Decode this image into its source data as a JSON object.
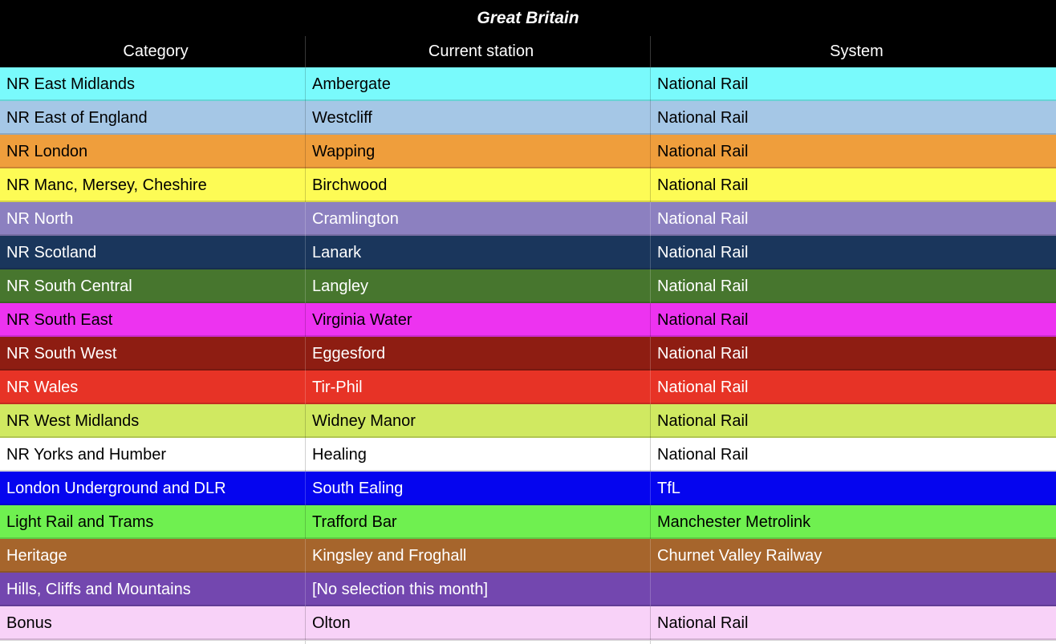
{
  "colors": {
    "header_bg": "#000000",
    "header_text": "#FFFFFF"
  },
  "chart_data": {
    "type": "table",
    "title": "Great Britain",
    "columns": [
      "Category",
      "Current station",
      "System"
    ],
    "rows": [
      {
        "category": "NR East Midlands",
        "station": "Ambergate",
        "system": "National Rail",
        "bg_color": "#79FAFC",
        "text_color": "#000000"
      },
      {
        "category": "NR East of England",
        "station": "Westcliff",
        "system": "National Rail",
        "bg_color": "#A5C7E6",
        "text_color": "#000000"
      },
      {
        "category": "NR London",
        "station": "Wapping",
        "system": "National Rail",
        "bg_color": "#EF9E3C",
        "text_color": "#000000"
      },
      {
        "category": "NR Manc, Mersey, Cheshire",
        "station": "Birchwood",
        "system": "National Rail",
        "bg_color": "#FDFB55",
        "text_color": "#000000"
      },
      {
        "category": "NR North",
        "station": "Cramlington",
        "system": "National Rail",
        "bg_color": "#8C80C0",
        "text_color": "#FFFFFF"
      },
      {
        "category": "NR Scotland",
        "station": "Lanark",
        "system": "National Rail",
        "bg_color": "#1A365C",
        "text_color": "#FFFFFF"
      },
      {
        "category": "NR South Central",
        "station": "Langley",
        "system": "National Rail",
        "bg_color": "#47762E",
        "text_color": "#FFFFFF"
      },
      {
        "category": "NR South East",
        "station": "Virginia Water",
        "system": "National Rail",
        "bg_color": "#ED33F0",
        "text_color": "#000000"
      },
      {
        "category": "NR South West",
        "station": "Eggesford",
        "system": "National Rail",
        "bg_color": "#8E1D12",
        "text_color": "#FFFFFF"
      },
      {
        "category": "NR Wales",
        "station": "Tir-Phil",
        "system": "National Rail",
        "bg_color": "#E73326",
        "text_color": "#FFFFFF"
      },
      {
        "category": "NR West Midlands",
        "station": "Widney Manor",
        "system": "National Rail",
        "bg_color": "#D0E961",
        "text_color": "#000000"
      },
      {
        "category": "NR Yorks and Humber",
        "station": "Healing",
        "system": "National Rail",
        "bg_color": "#FFFFFF",
        "text_color": "#000000"
      },
      {
        "category": "London Underground and DLR",
        "station": "South Ealing",
        "system": "TfL",
        "bg_color": "#0505EF",
        "text_color": "#FFFFFF"
      },
      {
        "category": "Light Rail and Trams",
        "station": "Trafford Bar",
        "system": "Manchester Metrolink",
        "bg_color": "#6FF050",
        "text_color": "#000000"
      },
      {
        "category": "Heritage",
        "station": "Kingsley and Froghall",
        "system": "Churnet Valley Railway",
        "bg_color": "#A6652C",
        "text_color": "#FFFFFF"
      },
      {
        "category": "Hills, Cliffs and Mountains",
        "station": "[No selection this month]",
        "system": "",
        "bg_color": "#7347AF",
        "text_color": "#FFFFFF"
      },
      {
        "category": "Bonus",
        "station": "Olton",
        "system": "National Rail",
        "bg_color": "#F8D2F8",
        "text_color": "#000000"
      }
    ]
  }
}
